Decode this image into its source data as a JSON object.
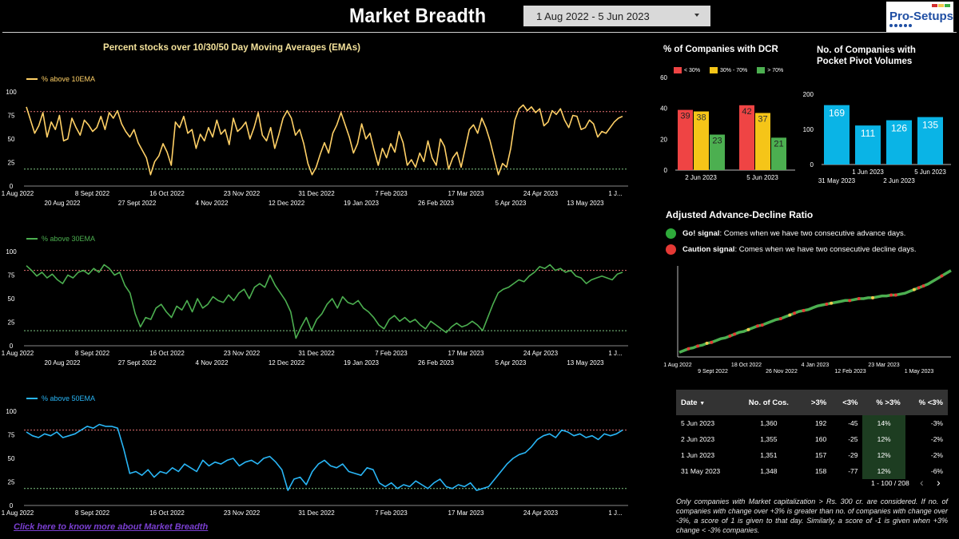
{
  "header": {
    "title": "Market Breadth",
    "date_range": "1 Aug 2022 - 5 Jun 2023",
    "logo_text": "Pro-Setups",
    "logo_colors": [
      "#d32f2f",
      "#f2c94c",
      "#3cb043"
    ]
  },
  "ema_section": {
    "title": "Percent stocks over 10/30/50 Day Moving Averages (EMAs)",
    "x_ticks_top": [
      "1 Aug 2022",
      "8 Sept 2022",
      "16 Oct 2022",
      "23 Nov 2022",
      "31 Dec 2022",
      "7 Feb 2023",
      "17 Mar 2023",
      "24 Apr 2023",
      "1 J..."
    ],
    "x_ticks_bottom": [
      "20 Aug 2022",
      "27 Sept 2022",
      "4 Nov 2022",
      "12 Dec 2022",
      "19 Jan 2023",
      "26 Feb 2023",
      "5 Apr 2023",
      "13 May 2023"
    ],
    "y_ticks": [
      "100",
      "75",
      "50",
      "25",
      "0"
    ]
  },
  "chart_data": [
    {
      "type": "line",
      "series": [
        {
          "name": "% above 10EMA",
          "color": "#ffd066",
          "values": [
            84,
            70,
            56,
            64,
            78,
            52,
            68,
            60,
            75,
            48,
            50,
            72,
            62,
            54,
            70,
            65,
            58,
            62,
            74,
            60,
            78,
            72,
            80,
            66,
            58,
            52,
            60,
            46,
            38,
            30,
            12,
            26,
            32,
            45,
            36,
            22,
            68,
            62,
            74,
            56,
            60,
            40,
            55,
            48,
            62,
            52,
            70,
            55,
            60,
            44,
            72,
            58,
            62,
            68,
            50,
            62,
            78,
            54,
            48,
            62,
            40,
            55,
            72,
            80,
            72,
            54,
            60,
            45,
            24,
            12,
            20,
            34,
            46,
            35,
            56,
            65,
            78,
            65,
            52,
            35,
            45,
            66,
            50,
            56,
            38,
            22,
            40,
            30,
            45,
            36,
            58,
            46,
            22,
            28,
            20,
            35,
            26,
            48,
            30,
            22,
            50,
            42,
            18,
            30,
            36,
            20,
            40,
            60,
            65,
            56,
            72,
            62,
            48,
            30,
            12,
            24,
            20,
            40,
            70,
            82,
            86,
            80,
            84,
            78,
            82,
            64,
            68,
            80,
            76,
            82,
            70,
            62,
            75,
            74,
            60,
            62,
            70,
            66,
            52,
            58,
            56,
            62,
            68,
            72,
            74
          ]
        }
      ],
      "ylim": [
        0,
        100
      ],
      "ref_lines": [
        79,
        18
      ]
    },
    {
      "type": "line",
      "series": [
        {
          "name": "% above 30EMA",
          "color": "#4caf50",
          "values": [
            85,
            80,
            74,
            78,
            72,
            76,
            70,
            66,
            75,
            72,
            78,
            80,
            76,
            82,
            78,
            86,
            82,
            75,
            78,
            64,
            56,
            34,
            20,
            30,
            28,
            40,
            44,
            36,
            30,
            42,
            38,
            48,
            36,
            50,
            40,
            44,
            52,
            48,
            46,
            54,
            48,
            56,
            60,
            50,
            62,
            66,
            62,
            75,
            64,
            56,
            48,
            36,
            8,
            20,
            30,
            16,
            28,
            34,
            44,
            50,
            40,
            52,
            46,
            44,
            48,
            40,
            36,
            30,
            22,
            18,
            28,
            32,
            26,
            30,
            25,
            28,
            22,
            18,
            26,
            22,
            18,
            14,
            20,
            24,
            20,
            22,
            26,
            22,
            16,
            30,
            44,
            56,
            60,
            62,
            66,
            70,
            68,
            74,
            78,
            84,
            82,
            86,
            80,
            82,
            78,
            80,
            74,
            72,
            66,
            70,
            72,
            74,
            72,
            70,
            76,
            78
          ]
        }
      ],
      "ylim": [
        0,
        100
      ],
      "ref_lines": [
        80,
        16
      ]
    },
    {
      "type": "line",
      "series": [
        {
          "name": "% above 50EMA",
          "color": "#29b6f6",
          "values": [
            78,
            74,
            72,
            76,
            74,
            78,
            72,
            74,
            76,
            80,
            84,
            82,
            86,
            84,
            84,
            82,
            60,
            34,
            36,
            32,
            38,
            30,
            36,
            34,
            40,
            36,
            44,
            40,
            36,
            48,
            42,
            46,
            44,
            48,
            50,
            42,
            46,
            48,
            44,
            50,
            52,
            46,
            38,
            16,
            28,
            30,
            22,
            36,
            44,
            48,
            42,
            40,
            44,
            36,
            34,
            32,
            40,
            38,
            24,
            20,
            24,
            18,
            22,
            20,
            26,
            22,
            18,
            24,
            28,
            20,
            18,
            22,
            20,
            24,
            16,
            18,
            20,
            28,
            36,
            44,
            50,
            54,
            56,
            62,
            70,
            74,
            76,
            72,
            80,
            78,
            74,
            76,
            72,
            74,
            70,
            76,
            74,
            76,
            80
          ]
        }
      ],
      "ylim": [
        0,
        100
      ],
      "ref_lines": [
        80,
        18
      ]
    },
    {
      "type": "bar",
      "title": "% of Companies with DCR",
      "categories": [
        "2 Jun 2023",
        "5 Jun 2023"
      ],
      "series": [
        {
          "name": "< 30%",
          "color": "#ef4444",
          "values": [
            39,
            42
          ]
        },
        {
          "name": "30% - 70%",
          "color": "#f5c518",
          "values": [
            38,
            37
          ]
        },
        {
          "name": "> 70%",
          "color": "#4caf50",
          "values": [
            23,
            21
          ]
        }
      ],
      "ylim": [
        0,
        60
      ],
      "y_ticks": [
        "60",
        "40",
        "20",
        "0"
      ],
      "legend": "top"
    },
    {
      "type": "bar",
      "title": "No. of Companies with Pocket Pivot Volumes",
      "categories": [
        "31 May 2023",
        "1 Jun 2023",
        "2 Jun 2023",
        "5 Jun 2023"
      ],
      "values": [
        169,
        111,
        126,
        135
      ],
      "color": "#0ab4e6",
      "ylim": [
        0,
        200
      ],
      "y_ticks": [
        "200",
        "100",
        "0"
      ]
    },
    {
      "type": "line",
      "title": "Adjusted Advance-Decline Ratio",
      "x_ticks_top": [
        "1 Aug 2022",
        "18 Oct 2022",
        "4 Jan 2023",
        "23 Mar 2023"
      ],
      "x_ticks_bottom": [
        "9 Sept 2022",
        "26 Nov 2022",
        "12 Feb 2023",
        "1 May 2023"
      ],
      "series": [
        {
          "name": "Adjusted A/D",
          "values": [
            5,
            7,
            9,
            10,
            12,
            13,
            15,
            16,
            18,
            20,
            21,
            23,
            25,
            27,
            28,
            30,
            32,
            34,
            35,
            37,
            39,
            41,
            42,
            44,
            46,
            48,
            50,
            51,
            52,
            54,
            56,
            57,
            58,
            59,
            60,
            61,
            62,
            62,
            63,
            64,
            64,
            65,
            65,
            66,
            67,
            67,
            68,
            68,
            69,
            70,
            72,
            74,
            76,
            78,
            80,
            83,
            86,
            89,
            92,
            95
          ]
        }
      ]
    }
  ],
  "ad_section": {
    "signals": [
      {
        "label": "Go! signal",
        "text": ": Comes when we have two consecutive advance days.",
        "color": "#2eaa3a"
      },
      {
        "label": "Caution signal",
        "text": ": Comes when we have two consecutive decline days.",
        "color": "#e53935"
      }
    ]
  },
  "table": {
    "headers": [
      "Date",
      "No. of Cos.",
      ">3%",
      "<3%",
      "% >3%",
      "% <3%"
    ],
    "sort_indicator": "▼",
    "rows": [
      [
        "5 Jun 2023",
        "1,360",
        "192",
        "-45",
        "14%",
        "-3%"
      ],
      [
        "2 Jun 2023",
        "1,355",
        "160",
        "-25",
        "12%",
        "-2%"
      ],
      [
        "1 Jun 2023",
        "1,351",
        "157",
        "-29",
        "12%",
        "-2%"
      ],
      [
        "31 May 2023",
        "1,348",
        "158",
        "-77",
        "12%",
        "-6%"
      ]
    ],
    "pager": "1 - 100 / 208"
  },
  "footnote": "Only companies with Market capitalization > Rs. 300 cr. are considered. If no. of companies with change over +3% is greater than no. of companies with change over -3%, a score of 1 is given to that day. Similarly, a score of -1 is given when +3% change < -3% companies.",
  "link_text": "Click here to know more about Market Breadth"
}
